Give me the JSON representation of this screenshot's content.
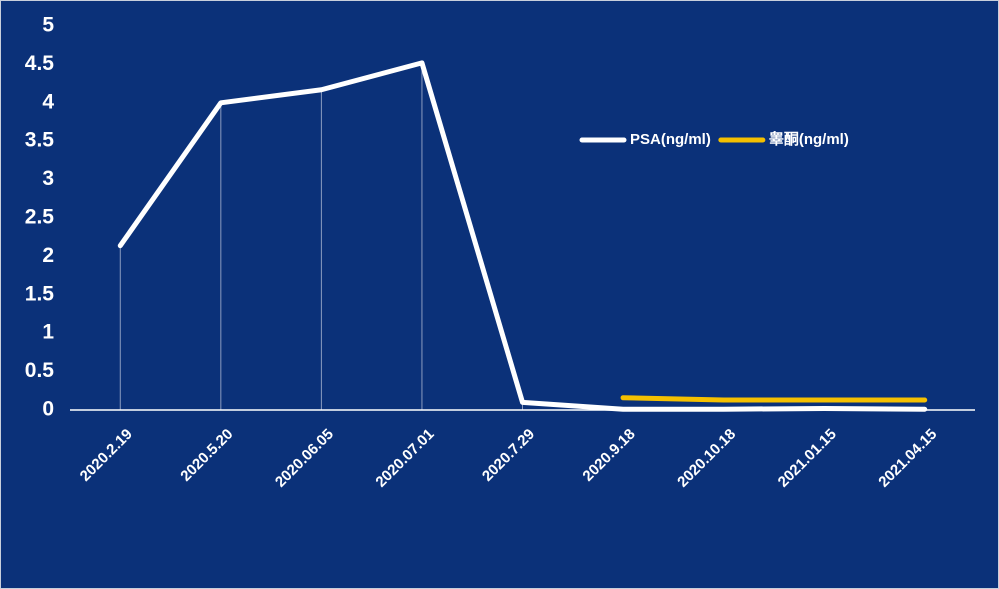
{
  "chart_data": {
    "type": "line",
    "categories": [
      "2020.2.19",
      "2020.5.20",
      "2020.06.05",
      "2020.07.01",
      "2020.7.29",
      "2020.9.18",
      "2020.10.18",
      "2021.01.15",
      "2021.04.15"
    ],
    "series": [
      {
        "name": "PSA(ng/ml)",
        "color": "#ffffff",
        "values": [
          2.14,
          4.0,
          4.17,
          4.52,
          0.1,
          0.01,
          0.01,
          0.02,
          0.01
        ]
      },
      {
        "name": "睾酮(ng/ml)",
        "color": "#f5c000",
        "values": [
          null,
          null,
          null,
          null,
          null,
          0.16,
          0.13,
          0.13,
          0.13
        ]
      }
    ],
    "ylim": [
      0,
      5
    ],
    "yticks": [
      0,
      0.5,
      1,
      1.5,
      2,
      2.5,
      3,
      3.5,
      4,
      4.5,
      5
    ],
    "drop_lines": true,
    "legend": "top-right"
  }
}
